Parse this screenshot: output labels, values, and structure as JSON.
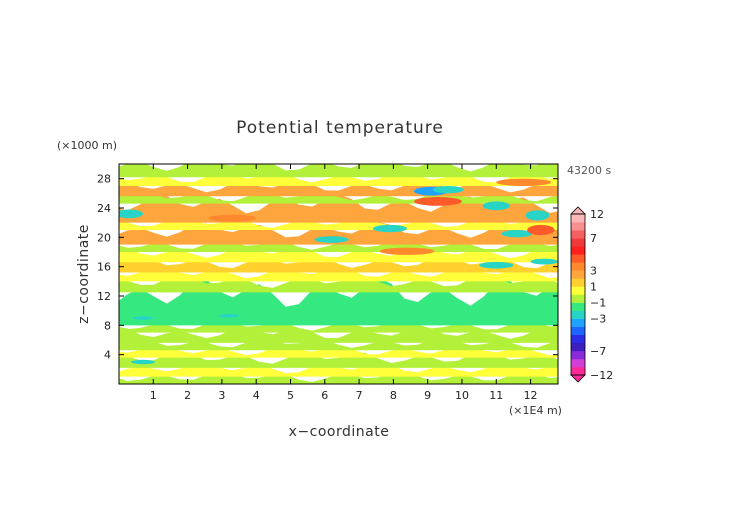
{
  "chart_data": {
    "type": "heatmap",
    "title": "Potential temperature",
    "xlabel": "x−coordinate",
    "ylabel": "z−coordinate",
    "x_unit": "(×1E4 m)",
    "y_unit": "(×1000 m)",
    "time_label": "43200 s",
    "xlim": [
      0,
      12.8
    ],
    "ylim": [
      0,
      30
    ],
    "x_ticks": [
      "1",
      "2",
      "3",
      "4",
      "5",
      "6",
      "7",
      "8",
      "9",
      "10",
      "11",
      "12"
    ],
    "y_ticks": [
      "4",
      "8",
      "12",
      "16",
      "20",
      "24",
      "28"
    ],
    "colorbar": {
      "labels": [
        "12",
        "7",
        "3",
        "1",
        "−1",
        "−3",
        "−7",
        "−12"
      ],
      "levels": [
        -12,
        -10,
        -8,
        -7,
        -6,
        -5,
        -4,
        -3,
        -2,
        -1,
        0,
        1,
        2,
        3,
        4,
        5,
        6,
        7,
        8,
        10,
        12
      ],
      "colors": [
        "#ff2a9a",
        "#d13fd6",
        "#8a2bd9",
        "#3d1fbf",
        "#2c2ce6",
        "#1e66ff",
        "#1fa3ff",
        "#27d4c6",
        "#35e87f",
        "#b3f03a",
        "#ffff3a",
        "#ffd02e",
        "#ffa53d",
        "#ff8a2e",
        "#ff5a2a",
        "#ff2020",
        "#ee3a3a",
        "#f45f5f",
        "#f79090",
        "#f9b7b7"
      ],
      "extend": "both"
    },
    "bands": [
      {
        "z0": 0.0,
        "z1": 1.0,
        "anomaly": -0.4
      },
      {
        "z0": 1.0,
        "z1": 2.2,
        "anomaly": 0.4
      },
      {
        "z0": 2.2,
        "z1": 3.6,
        "anomaly": -0.3
      },
      {
        "z0": 3.6,
        "z1": 4.6,
        "anomaly": 0.3
      },
      {
        "z0": 4.6,
        "z1": 5.6,
        "anomaly": -0.7
      },
      {
        "z0": 5.6,
        "z1": 7.0,
        "anomaly": -0.3
      },
      {
        "z0": 7.0,
        "z1": 8.0,
        "anomaly": -0.5
      },
      {
        "z0": 8.0,
        "z1": 12.5,
        "anomaly": -1.6
      },
      {
        "z0": 12.5,
        "z1": 14.0,
        "anomaly": -0.6
      },
      {
        "z0": 14.0,
        "z1": 15.2,
        "anomaly": 0.5
      },
      {
        "z0": 15.2,
        "z1": 16.6,
        "anomaly": 1.8
      },
      {
        "z0": 16.6,
        "z1": 18.0,
        "anomaly": 0.3
      },
      {
        "z0": 18.0,
        "z1": 19.0,
        "anomaly": -0.6
      },
      {
        "z0": 19.0,
        "z1": 21.0,
        "anomaly": 2.0
      },
      {
        "z0": 21.0,
        "z1": 22.0,
        "anomaly": 0.2
      },
      {
        "z0": 22.0,
        "z1": 24.6,
        "anomaly": 2.4
      },
      {
        "z0": 24.6,
        "z1": 25.6,
        "anomaly": -0.2
      },
      {
        "z0": 25.6,
        "z1": 27.0,
        "anomaly": 2.1
      },
      {
        "z0": 27.0,
        "z1": 28.2,
        "anomaly": 0.3
      },
      {
        "z0": 28.2,
        "z1": 30.0,
        "anomaly": -0.3
      }
    ],
    "features": [
      {
        "x": 9.1,
        "z": 26.3,
        "rx": 0.5,
        "rz": 0.6,
        "anomaly": -3.4
      },
      {
        "x": 9.6,
        "z": 26.5,
        "rx": 0.45,
        "rz": 0.5,
        "anomaly": -2.2
      },
      {
        "x": 11.0,
        "z": 24.3,
        "rx": 0.4,
        "rz": 0.6,
        "anomaly": -2.8
      },
      {
        "x": 12.2,
        "z": 23.0,
        "rx": 0.35,
        "rz": 0.7,
        "anomaly": -2.6
      },
      {
        "x": 0.3,
        "z": 23.2,
        "rx": 0.4,
        "rz": 0.6,
        "anomaly": -2.4
      },
      {
        "x": 7.9,
        "z": 21.2,
        "rx": 0.5,
        "rz": 0.5,
        "anomaly": -2.3
      },
      {
        "x": 6.2,
        "z": 19.7,
        "rx": 0.5,
        "rz": 0.45,
        "anomaly": -2.2
      },
      {
        "x": 11.6,
        "z": 20.5,
        "rx": 0.45,
        "rz": 0.5,
        "anomaly": -2.5
      },
      {
        "x": 11.0,
        "z": 16.2,
        "rx": 0.5,
        "rz": 0.45,
        "anomaly": -2.3
      },
      {
        "x": 12.4,
        "z": 16.7,
        "rx": 0.4,
        "rz": 0.4,
        "anomaly": -2.2
      },
      {
        "x": 9.3,
        "z": 24.9,
        "rx": 0.7,
        "rz": 0.6,
        "anomaly": 4.2
      },
      {
        "x": 12.3,
        "z": 21.0,
        "rx": 0.4,
        "rz": 0.7,
        "anomaly": 4.0
      },
      {
        "x": 11.8,
        "z": 27.5,
        "rx": 0.8,
        "rz": 0.5,
        "anomaly": 3.3
      },
      {
        "x": 3.3,
        "z": 22.6,
        "rx": 0.7,
        "rz": 0.5,
        "anomaly": 3.2
      },
      {
        "x": 8.4,
        "z": 18.1,
        "rx": 0.8,
        "rz": 0.5,
        "anomaly": 3.0
      },
      {
        "x": 0.7,
        "z": 9.0,
        "rx": 0.3,
        "rz": 0.25,
        "anomaly": -2.6
      },
      {
        "x": 3.2,
        "z": 9.3,
        "rx": 0.3,
        "rz": 0.25,
        "anomaly": -2.5
      },
      {
        "x": 0.7,
        "z": 3.0,
        "rx": 0.35,
        "rz": 0.3,
        "anomaly": -2.2
      }
    ]
  }
}
